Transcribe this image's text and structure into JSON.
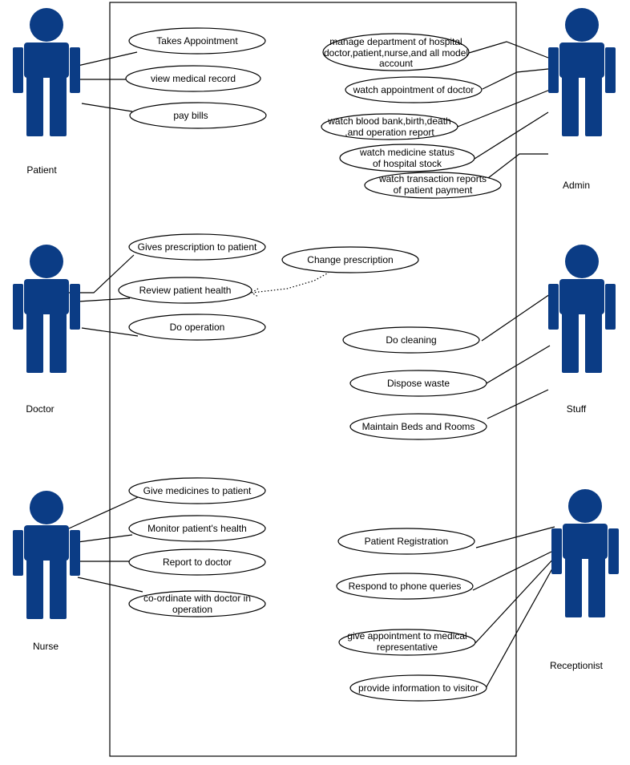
{
  "colors": {
    "actor": "#0b3c85",
    "line": "#000000",
    "background": "#ffffff"
  },
  "actors": {
    "patient": "Patient",
    "admin": "Admin",
    "doctor": "Doctor",
    "stuff": "Stuff",
    "nurse": "Nurse",
    "receptionist": "Receptionist"
  },
  "use_cases": {
    "patient": [
      "Takes Appointment",
      "view medical record",
      "pay bills"
    ],
    "admin": [
      [
        "manage department of hospital",
        "doctor,patient,nurse,and all model",
        "account"
      ],
      [
        "watch appointment of doctor"
      ],
      [
        "watch blood bank,birth,death",
        ",and operation report"
      ],
      [
        "watch medicine status",
        "of hospital stock"
      ],
      [
        "watch transaction reports",
        "of patient payment"
      ]
    ],
    "doctor": [
      "Gives prescription to patient",
      "Review patient health",
      "Do operation"
    ],
    "extension": "Change prescription",
    "stuff": [
      "Do cleaning",
      "Dispose waste",
      "Maintain Beds and Rooms"
    ],
    "nurse": [
      [
        "Give medicines to patient"
      ],
      [
        "Monitor patient's health"
      ],
      [
        "Report to doctor"
      ],
      [
        "co-ordinate with doctor in",
        "operation"
      ]
    ],
    "receptionist": [
      [
        "Patient Registration"
      ],
      [
        "Respond to phone queries"
      ],
      [
        "give appointment to medical",
        "representative"
      ],
      [
        "provide information to visitor"
      ]
    ]
  }
}
